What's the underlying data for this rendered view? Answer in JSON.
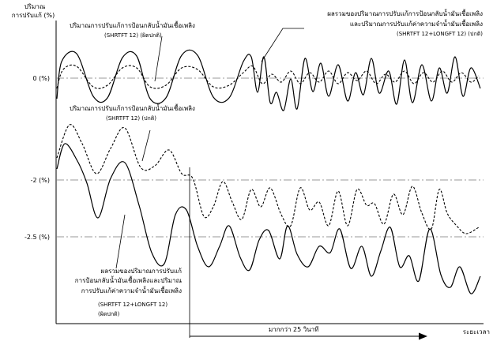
{
  "y_axis": {
    "title_line1": "ปริมาณ",
    "title_line2": "การปรับแก้ (%)"
  },
  "x_axis": {
    "label": "ระยะเวลา"
  },
  "levels": {
    "zero": "0 (%)",
    "minus2": "-2 (%)",
    "minus2_5": "-2.5 (%)"
  },
  "annotations": {
    "top_left": {
      "line1": "ปริมาณการปรับแก้การป้อนกลับน้ำมันเชื้อเพลิง",
      "line2": "(SHRTFT 12) (ผิดปกติ)"
    },
    "top_right": {
      "line1": "ผลรวมของปริมาณการปรับแก้การป้อนกลับน้ำมันเชื้อเพลิง",
      "line2": "และปริมาณการปรับแก้ค่าความจำน้ำมันเชื้อเพลิง",
      "line3": "(SHRTFT 12+LONGFT 12) (ปกติ)"
    },
    "middle_left": {
      "line1": "ปริมาณการปรับแก้การป้อนกลับน้ำมันเชื้อเพลิง",
      "line2": "(SHRTFT 12) (ปกติ)"
    },
    "bottom_left": {
      "line1": "ผลรวมของปริมาณการปรับแก้",
      "line2": "การป้อนกลับน้ำมันเชื้อเพลิงและปริมาณ",
      "line3": "การปรับแก้ค่าความจำน้ำมันเชื้อเพลิง",
      "line4": "(SHRTFT 12+LONGFT 12)",
      "line5": "(ผิดปกติ)"
    },
    "duration": "มากกว่า 25 วินาที"
  }
}
